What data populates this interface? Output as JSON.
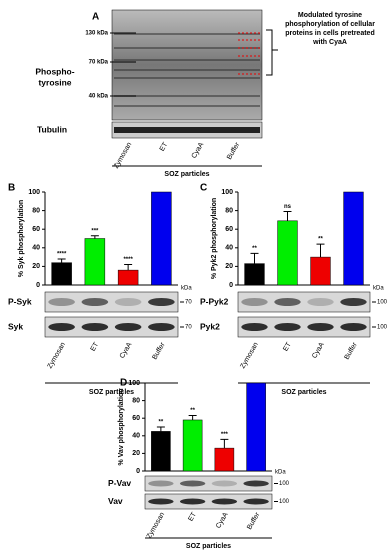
{
  "figure": {
    "label": "A",
    "markers": [
      "130 kDa",
      "70 kDa",
      "40 kDa"
    ],
    "ylabel": [
      "Phospho-",
      "tyrosine"
    ],
    "note": [
      "Modulated tyrosine",
      "phosphorylation of cellular",
      "proteins in cells pretreated",
      "with CyaA"
    ],
    "loading": "Tubulin",
    "categories": [
      "Zymosan",
      "ET",
      "CyaA",
      "Buffer"
    ],
    "xlabel": "SOZ particles"
  },
  "chart_data": [
    {
      "type": "bar",
      "panel": "B",
      "ylabel": "% Syk phosphorylation",
      "xlabel": "SOZ particles",
      "categories": [
        "Zymosan",
        "ET",
        "CyaA",
        "Buffer"
      ],
      "values": [
        24,
        50,
        16,
        100
      ],
      "errors": [
        4,
        3,
        6,
        null
      ],
      "annotations": [
        "****",
        "***",
        "****",
        null
      ],
      "colors": [
        "#000000",
        "#00ee00",
        "#ee0000",
        "#0000ee"
      ],
      "ylim": [
        0,
        100
      ],
      "yticks": [
        0,
        20,
        40,
        60,
        80,
        100
      ],
      "kda": "kDa",
      "blots": [
        {
          "label": "P-Syk",
          "marker": "70"
        },
        {
          "label": "Syk",
          "marker": "70"
        }
      ]
    },
    {
      "type": "bar",
      "panel": "C",
      "ylabel": "% Pyk2 phosphorylation",
      "xlabel": "SOZ particles",
      "categories": [
        "Zymosan",
        "ET",
        "CyaA",
        "Buffer"
      ],
      "values": [
        23,
        69,
        30,
        100
      ],
      "errors": [
        11,
        10,
        14,
        null
      ],
      "annotations": [
        "**",
        "ns",
        "**",
        null
      ],
      "colors": [
        "#000000",
        "#00ee00",
        "#ee0000",
        "#0000ee"
      ],
      "ylim": [
        0,
        100
      ],
      "yticks": [
        0,
        20,
        40,
        60,
        80,
        100
      ],
      "kda": "kDa",
      "blots": [
        {
          "label": "P-Pyk2",
          "marker": "100"
        },
        {
          "label": "Pyk2",
          "marker": "100"
        }
      ]
    },
    {
      "type": "bar",
      "panel": "D",
      "ylabel": "% Vav phosphorylation",
      "xlabel": "SOZ particles",
      "categories": [
        "Zymosan",
        "ET",
        "CyaA",
        "Buffer"
      ],
      "values": [
        45,
        58,
        26,
        100
      ],
      "errors": [
        5,
        5,
        10,
        null
      ],
      "annotations": [
        "**",
        "**",
        "***",
        null
      ],
      "colors": [
        "#000000",
        "#00ee00",
        "#ee0000",
        "#0000ee"
      ],
      "ylim": [
        0,
        100
      ],
      "yticks": [
        0,
        20,
        40,
        60,
        80,
        100
      ],
      "kda": "kDa",
      "blots": [
        {
          "label": "P-Vav",
          "marker": "100"
        },
        {
          "label": "Vav",
          "marker": "100"
        }
      ]
    }
  ]
}
